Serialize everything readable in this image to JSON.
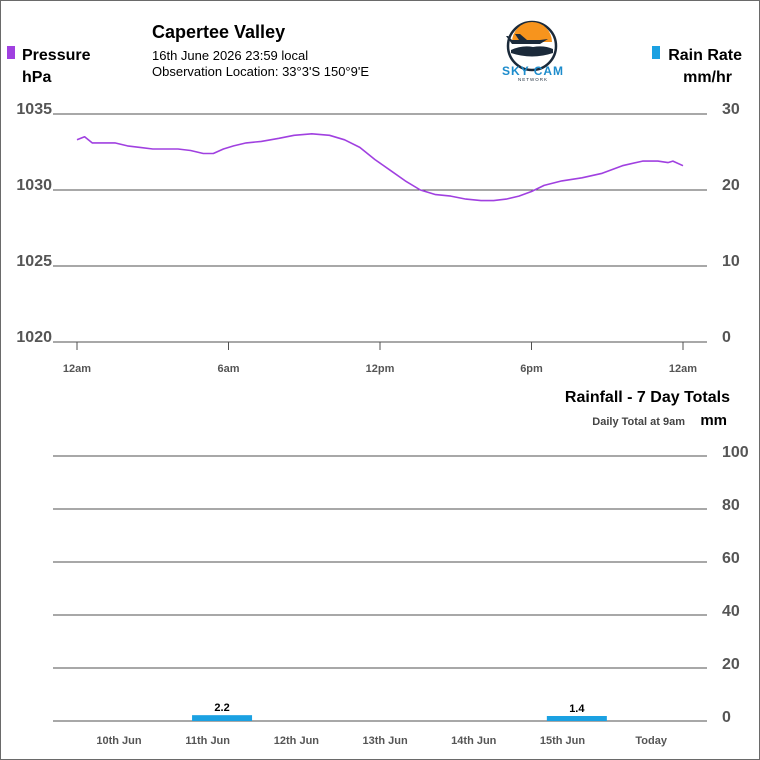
{
  "header": {
    "station_name": "Capertee Valley",
    "timestamp": "16th June 2026  23:59 local",
    "location": "Observation Location: 33°3'S 150°9'E"
  },
  "logo": {
    "text": "SKY CAM",
    "subtext": "NETWORK",
    "icon": "plane-sunset-icon",
    "sun_color": "#f7941d",
    "brand_color": "#1d8ccc",
    "dark_color": "#1b2a3a"
  },
  "chart_data": [
    {
      "type": "line",
      "left_axis": {
        "title": "Pressure",
        "unit": "hPa",
        "range": [
          1020,
          1035
        ],
        "ticks": [
          1035,
          1030,
          1025,
          1020
        ]
      },
      "right_axis": {
        "title": "Rain Rate",
        "unit": "mm/hr",
        "range": [
          0,
          30
        ],
        "ticks": [
          30,
          20,
          10,
          0
        ]
      },
      "x_range_hours": [
        0,
        24
      ],
      "x_ticks": [
        {
          "hour": 0,
          "label": "12am"
        },
        {
          "hour": 6,
          "label": "6am"
        },
        {
          "hour": 12,
          "label": "12pm"
        },
        {
          "hour": 18,
          "label": "6pm"
        },
        {
          "hour": 24,
          "label": "12am"
        }
      ],
      "grid": true,
      "series": [
        {
          "name": "Pressure",
          "axis": "left",
          "color": "#a040e0",
          "points": [
            [
              0.0,
              1033.3
            ],
            [
              0.3,
              1033.5
            ],
            [
              0.6,
              1033.1
            ],
            [
              1.0,
              1033.1
            ],
            [
              1.5,
              1033.1
            ],
            [
              2.0,
              1032.9
            ],
            [
              2.5,
              1032.8
            ],
            [
              3.0,
              1032.7
            ],
            [
              3.5,
              1032.7
            ],
            [
              4.0,
              1032.7
            ],
            [
              4.5,
              1032.6
            ],
            [
              5.0,
              1032.4
            ],
            [
              5.4,
              1032.4
            ],
            [
              5.8,
              1032.7
            ],
            [
              6.2,
              1032.9
            ],
            [
              6.7,
              1033.1
            ],
            [
              7.3,
              1033.2
            ],
            [
              8.0,
              1033.4
            ],
            [
              8.6,
              1033.6
            ],
            [
              9.3,
              1033.7
            ],
            [
              10.0,
              1033.6
            ],
            [
              10.6,
              1033.3
            ],
            [
              11.2,
              1032.8
            ],
            [
              11.8,
              1032.0
            ],
            [
              12.4,
              1031.3
            ],
            [
              13.0,
              1030.6
            ],
            [
              13.6,
              1030.0
            ],
            [
              14.2,
              1029.7
            ],
            [
              14.8,
              1029.6
            ],
            [
              15.4,
              1029.4
            ],
            [
              16.0,
              1029.3
            ],
            [
              16.5,
              1029.3
            ],
            [
              17.0,
              1029.4
            ],
            [
              17.5,
              1029.6
            ],
            [
              18.0,
              1029.9
            ],
            [
              18.5,
              1030.3
            ],
            [
              19.2,
              1030.6
            ],
            [
              20.0,
              1030.8
            ],
            [
              20.8,
              1031.1
            ],
            [
              21.6,
              1031.6
            ],
            [
              22.4,
              1031.9
            ],
            [
              23.0,
              1031.9
            ],
            [
              23.4,
              1031.8
            ],
            [
              23.6,
              1031.9
            ],
            [
              24.0,
              1031.6
            ]
          ]
        },
        {
          "name": "Rain Rate",
          "axis": "right",
          "color": "#1ba1e2",
          "points": []
        }
      ]
    },
    {
      "type": "bar",
      "title": "Rainfall - 7 Day Totals",
      "subtitle": "Daily Total at 9am",
      "unit": "mm",
      "ylim": [
        0,
        100
      ],
      "ticks": [
        100,
        80,
        60,
        40,
        20,
        0
      ],
      "grid": true,
      "color": "#1ba1e2",
      "categories": [
        "10th Jun",
        "11th Jun",
        "12th Jun",
        "13th Jun",
        "14th Jun",
        "15th Jun",
        "Today"
      ],
      "values": [
        0,
        2.2,
        0,
        0,
        0,
        1.4,
        0
      ],
      "data_labels": [
        "",
        "2.2",
        "",
        "",
        "",
        "1.4",
        ""
      ]
    }
  ]
}
